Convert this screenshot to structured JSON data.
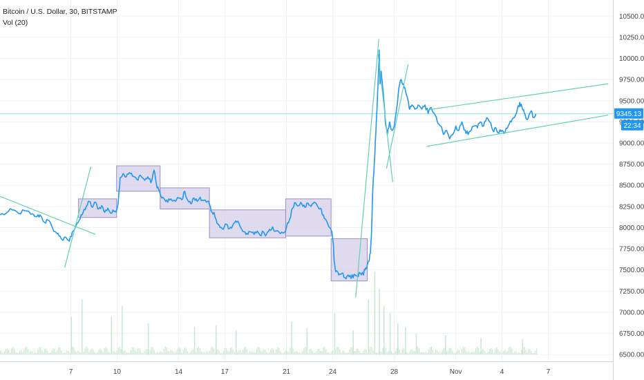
{
  "header": {
    "symbol_line": "Bitcoin / U.S. Dollar, 30, BITSTAMP",
    "volume_line": "Vol (20)"
  },
  "colors": {
    "price_line": "#2196f3",
    "box_fill": "#d6cdea",
    "box_stroke": "#9c8cc4",
    "trendline": "#5fd1b4",
    "horizontal_line": "#8fe0e0",
    "grid": "#eef0f3",
    "axis_border": "#cfd3d9",
    "volume_bar": "#c9e7d1",
    "price_tag_bg": "#2196f3"
  },
  "chart_data": {
    "type": "line",
    "title": "Bitcoin / U.S. Dollar, 30, BITSTAMP",
    "xlabel": "",
    "ylabel": "",
    "x_axis": {
      "ticks": [
        {
          "day": 7,
          "label": "7"
        },
        {
          "day": 10,
          "label": "10"
        },
        {
          "day": 14,
          "label": "14"
        },
        {
          "day": 17,
          "label": "17"
        },
        {
          "day": 21,
          "label": "21"
        },
        {
          "day": 24,
          "label": "24"
        },
        {
          "day": 28,
          "label": "28"
        },
        {
          "day": 32,
          "label": "Nov"
        },
        {
          "day": 35,
          "label": "4"
        },
        {
          "day": 38,
          "label": "7"
        }
      ],
      "range_days": [
        2.4,
        42.2
      ]
    },
    "y_axis": {
      "ticks": [
        6500,
        6750,
        7000,
        7250,
        7500,
        7750,
        8000,
        8250,
        8500,
        8750,
        9000,
        9250,
        9500,
        9750,
        10000,
        10250,
        10500
      ],
      "ylim": [
        6420,
        10690
      ]
    },
    "series": [
      {
        "name": "Bitcoin / U.S. Dollar",
        "points": [
          [
            2.4,
            8150
          ],
          [
            2.8,
            8170
          ],
          [
            3.2,
            8210
          ],
          [
            3.6,
            8170
          ],
          [
            4.0,
            8200
          ],
          [
            4.4,
            8160
          ],
          [
            4.8,
            8130
          ],
          [
            5.0,
            8150
          ],
          [
            5.3,
            8060
          ],
          [
            5.5,
            8090
          ],
          [
            5.8,
            8000
          ],
          [
            6.1,
            7930
          ],
          [
            6.3,
            7900
          ],
          [
            6.5,
            7850
          ],
          [
            6.7,
            7880
          ],
          [
            6.9,
            7840
          ],
          [
            7.1,
            7950
          ],
          [
            7.4,
            8050
          ],
          [
            7.6,
            8100
          ],
          [
            7.8,
            8180
          ],
          [
            8.0,
            8250
          ],
          [
            8.2,
            8310
          ],
          [
            8.4,
            8240
          ],
          [
            8.6,
            8300
          ],
          [
            8.8,
            8220
          ],
          [
            9.0,
            8260
          ],
          [
            9.2,
            8180
          ],
          [
            9.4,
            8230
          ],
          [
            9.6,
            8170
          ],
          [
            9.8,
            8190
          ],
          [
            10.0,
            8220
          ],
          [
            10.1,
            8350
          ],
          [
            10.2,
            8590
          ],
          [
            10.4,
            8640
          ],
          [
            10.6,
            8600
          ],
          [
            10.8,
            8650
          ],
          [
            11.0,
            8610
          ],
          [
            11.3,
            8570
          ],
          [
            11.5,
            8620
          ],
          [
            11.8,
            8560
          ],
          [
            12.0,
            8600
          ],
          [
            12.2,
            8530
          ],
          [
            12.4,
            8680
          ],
          [
            12.55,
            8520
          ],
          [
            12.7,
            8450
          ],
          [
            12.9,
            8350
          ],
          [
            13.1,
            8330
          ],
          [
            13.3,
            8300
          ],
          [
            13.5,
            8340
          ],
          [
            13.8,
            8310
          ],
          [
            14.0,
            8350
          ],
          [
            14.2,
            8330
          ],
          [
            14.4,
            8430
          ],
          [
            14.6,
            8320
          ],
          [
            14.8,
            8280
          ],
          [
            15.0,
            8350
          ],
          [
            15.2,
            8310
          ],
          [
            15.4,
            8360
          ],
          [
            15.6,
            8320
          ],
          [
            15.8,
            8300
          ],
          [
            16.0,
            8280
          ],
          [
            16.1,
            8200
          ],
          [
            16.3,
            8180
          ],
          [
            16.5,
            8050
          ],
          [
            16.7,
            8000
          ],
          [
            16.9,
            7980
          ],
          [
            17.1,
            8040
          ],
          [
            17.3,
            7990
          ],
          [
            17.5,
            8020
          ],
          [
            17.7,
            8080
          ],
          [
            17.9,
            8060
          ],
          [
            18.1,
            7980
          ],
          [
            18.3,
            7950
          ],
          [
            18.5,
            7920
          ],
          [
            18.7,
            7950
          ],
          [
            18.9,
            7920
          ],
          [
            19.1,
            7960
          ],
          [
            19.3,
            7910
          ],
          [
            19.5,
            7950
          ],
          [
            19.7,
            7920
          ],
          [
            19.9,
            7980
          ],
          [
            20.1,
            8010
          ],
          [
            20.3,
            7960
          ],
          [
            20.6,
            7930
          ],
          [
            20.9,
            7950
          ],
          [
            21.0,
            8000
          ],
          [
            21.2,
            8100
          ],
          [
            21.4,
            8230
          ],
          [
            21.6,
            8290
          ],
          [
            21.8,
            8260
          ],
          [
            22.0,
            8280
          ],
          [
            22.2,
            8240
          ],
          [
            22.4,
            8290
          ],
          [
            22.6,
            8250
          ],
          [
            22.8,
            8300
          ],
          [
            23.0,
            8260
          ],
          [
            23.2,
            8230
          ],
          [
            23.4,
            8150
          ],
          [
            23.6,
            8080
          ],
          [
            23.8,
            8000
          ],
          [
            23.95,
            7950
          ],
          [
            24.05,
            7800
          ],
          [
            24.1,
            7600
          ],
          [
            24.2,
            7480
          ],
          [
            24.4,
            7440
          ],
          [
            24.6,
            7460
          ],
          [
            24.8,
            7410
          ],
          [
            25.0,
            7440
          ],
          [
            25.2,
            7400
          ],
          [
            25.4,
            7450
          ],
          [
            25.6,
            7430
          ],
          [
            25.8,
            7460
          ],
          [
            26.0,
            7440
          ],
          [
            26.1,
            7500
          ],
          [
            26.2,
            7520
          ],
          [
            26.35,
            7600
          ],
          [
            26.45,
            7700
          ],
          [
            26.52,
            7900
          ],
          [
            26.58,
            8300
          ],
          [
            26.65,
            8600
          ],
          [
            26.72,
            8800
          ],
          [
            26.8,
            9100
          ],
          [
            26.88,
            9400
          ],
          [
            26.95,
            9700
          ],
          [
            27.02,
            10100
          ],
          [
            27.08,
            9700
          ],
          [
            27.15,
            9850
          ],
          [
            27.25,
            9650
          ],
          [
            27.35,
            9450
          ],
          [
            27.45,
            9200
          ],
          [
            27.55,
            9100
          ],
          [
            27.7,
            9250
          ],
          [
            27.85,
            9150
          ],
          [
            28.0,
            9200
          ],
          [
            28.15,
            9400
          ],
          [
            28.3,
            9650
          ],
          [
            28.45,
            9750
          ],
          [
            28.6,
            9700
          ],
          [
            28.75,
            9600
          ],
          [
            28.9,
            9500
          ],
          [
            29.0,
            9400
          ],
          [
            29.15,
            9450
          ],
          [
            29.35,
            9400
          ],
          [
            29.55,
            9450
          ],
          [
            29.8,
            9400
          ],
          [
            30.0,
            9450
          ],
          [
            30.2,
            9350
          ],
          [
            30.4,
            9420
          ],
          [
            30.6,
            9350
          ],
          [
            30.8,
            9250
          ],
          [
            31.0,
            9200
          ],
          [
            31.2,
            9100
          ],
          [
            31.4,
            9150
          ],
          [
            31.6,
            9050
          ],
          [
            31.8,
            9100
          ],
          [
            32.0,
            9200
          ],
          [
            32.2,
            9150
          ],
          [
            32.4,
            9250
          ],
          [
            32.6,
            9150
          ],
          [
            32.8,
            9100
          ],
          [
            33.0,
            9150
          ],
          [
            33.2,
            9200
          ],
          [
            33.4,
            9180
          ],
          [
            33.6,
            9250
          ],
          [
            33.8,
            9200
          ],
          [
            34.0,
            9300
          ],
          [
            34.2,
            9250
          ],
          [
            34.4,
            9150
          ],
          [
            34.6,
            9180
          ],
          [
            34.8,
            9120
          ],
          [
            35.0,
            9150
          ],
          [
            35.2,
            9130
          ],
          [
            35.4,
            9200
          ],
          [
            35.6,
            9250
          ],
          [
            35.8,
            9300
          ],
          [
            36.0,
            9400
          ],
          [
            36.15,
            9480
          ],
          [
            36.3,
            9420
          ],
          [
            36.45,
            9350
          ],
          [
            36.6,
            9280
          ],
          [
            36.75,
            9330
          ],
          [
            36.9,
            9380
          ],
          [
            37.05,
            9300
          ],
          [
            37.2,
            9345
          ]
        ]
      }
    ],
    "last_price": {
      "value": 9345.13,
      "label": "9345.13",
      "countdown": "22:34"
    },
    "horizontal_line": 9345,
    "range_boxes": [
      {
        "x0": 7.5,
        "x1": 9.97,
        "y0": 8120,
        "y1": 8340
      },
      {
        "x0": 9.97,
        "x1": 12.8,
        "y0": 8430,
        "y1": 8730
      },
      {
        "x0": 12.8,
        "x1": 16.0,
        "y0": 8220,
        "y1": 8470
      },
      {
        "x0": 16.0,
        "x1": 20.95,
        "y0": 7880,
        "y1": 8210
      },
      {
        "x0": 20.95,
        "x1": 23.9,
        "y0": 7900,
        "y1": 8340
      },
      {
        "x0": 23.9,
        "x1": 26.25,
        "y0": 7370,
        "y1": 7870
      }
    ],
    "trendlines": [
      {
        "x0": 2.4,
        "y0": 8370,
        "x1": 8.6,
        "y1": 7920
      },
      {
        "x0": 6.6,
        "y0": 7530,
        "x1": 8.3,
        "y1": 8720
      },
      {
        "x0": 25.5,
        "y0": 7180,
        "x1": 27.0,
        "y1": 10230
      },
      {
        "x0": 26.95,
        "y0": 10050,
        "x1": 27.9,
        "y1": 8540
      },
      {
        "x0": 27.5,
        "y0": 8700,
        "x1": 28.9,
        "y1": 9930
      },
      {
        "x0": 30.1,
        "y0": 9390,
        "x1": 41.9,
        "y1": 9700
      },
      {
        "x0": 30.1,
        "y0": 8960,
        "x1": 41.9,
        "y1": 9330
      }
    ],
    "volume": {
      "baseline_y": 6500,
      "spikes": [
        {
          "x": 7.0,
          "h": 55
        },
        {
          "x": 7.7,
          "h": 80
        },
        {
          "x": 9.6,
          "h": 55
        },
        {
          "x": 10.3,
          "h": 70
        },
        {
          "x": 12.0,
          "h": 45
        },
        {
          "x": 15.0,
          "h": 40
        },
        {
          "x": 16.4,
          "h": 42
        },
        {
          "x": 17.7,
          "h": 35
        },
        {
          "x": 21.3,
          "h": 48
        },
        {
          "x": 22.3,
          "h": 38
        },
        {
          "x": 24.1,
          "h": 60
        },
        {
          "x": 25.3,
          "h": 35
        },
        {
          "x": 26.3,
          "h": 80
        },
        {
          "x": 26.7,
          "h": 120
        },
        {
          "x": 27.0,
          "h": 95
        },
        {
          "x": 27.3,
          "h": 70
        },
        {
          "x": 27.7,
          "h": 60
        },
        {
          "x": 28.2,
          "h": 45
        },
        {
          "x": 28.7,
          "h": 40
        },
        {
          "x": 29.4,
          "h": 30
        },
        {
          "x": 31.3,
          "h": 28
        },
        {
          "x": 33.6,
          "h": 24
        },
        {
          "x": 36.3,
          "h": 22
        }
      ]
    },
    "grid": true,
    "legend": "top-left"
  }
}
